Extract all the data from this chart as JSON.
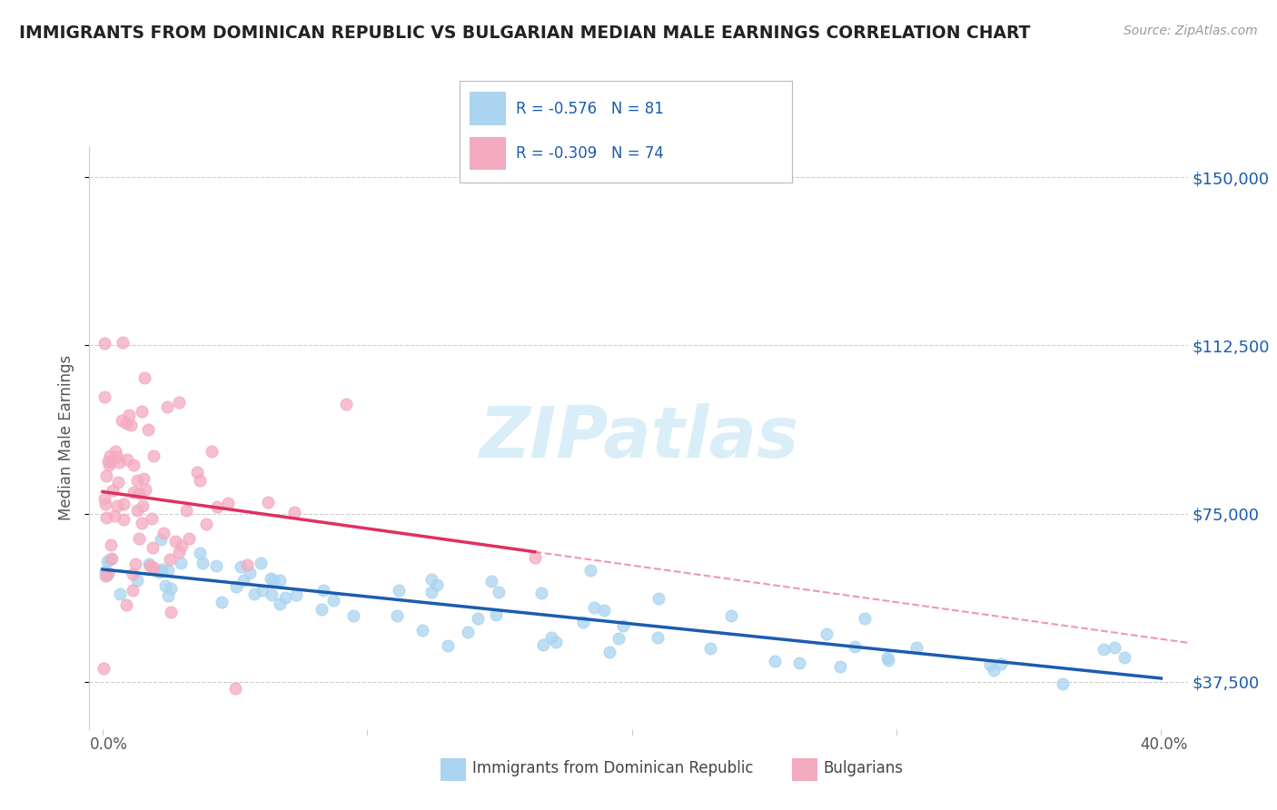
{
  "title": "IMMIGRANTS FROM DOMINICAN REPUBLIC VS BULGARIAN MEDIAN MALE EARNINGS CORRELATION CHART",
  "source": "Source: ZipAtlas.com",
  "ylabel": "Median Male Earnings",
  "y_ticks": [
    37500,
    75000,
    112500,
    150000
  ],
  "y_tick_labels": [
    "$37,500",
    "$75,000",
    "$112,500",
    "$150,000"
  ],
  "x_min": 0.0,
  "x_max": 40.0,
  "y_min": 27000,
  "y_max": 157000,
  "legend_r1": "R = -0.576   N = 81",
  "legend_r2": "R = -0.309   N = 74",
  "series1_label": "Immigrants from Dominican Republic",
  "series2_label": "Bulgarians",
  "series1_color": "#aad4f0",
  "series2_color": "#f4aabf",
  "series1_line_color": "#1a5cb0",
  "series2_line_color": "#e03060",
  "background_color": "#ffffff",
  "watermark_color": "#daeef8",
  "grid_color": "#cccccc",
  "r1": -0.576,
  "n1": 81,
  "r2": -0.309,
  "n2": 74,
  "title_color": "#222222",
  "source_color": "#999999",
  "axis_label_color": "#555555",
  "tick_label_color": "#1a5cb0",
  "legend_text_color": "#1a5cb0"
}
